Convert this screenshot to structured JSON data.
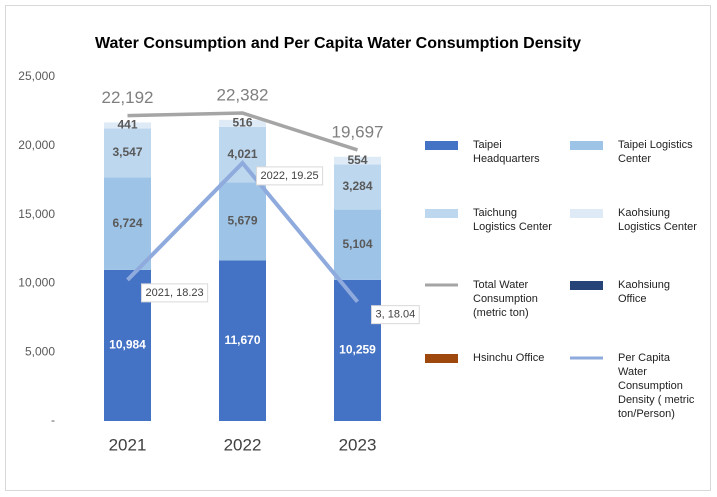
{
  "chart_data": {
    "type": "bar",
    "stacked": true,
    "title": "Water Consumption and Per Capita Water Consumption Density",
    "categories": [
      "2021",
      "2022",
      "2023"
    ],
    "ylim": [
      0,
      25000
    ],
    "yticks": [
      {
        "value": 0,
        "label": "-"
      },
      {
        "value": 5000,
        "label": "5,000"
      },
      {
        "value": 10000,
        "label": "10,000"
      },
      {
        "value": 15000,
        "label": "15,000"
      },
      {
        "value": 20000,
        "label": "20,000"
      },
      {
        "value": 25000,
        "label": "25,000"
      }
    ],
    "y2lim": [
      17,
      20
    ],
    "grid": false,
    "legend": "right",
    "series": [
      {
        "name": "Taipei Headquarters",
        "type": "bar",
        "color": "#4472c4",
        "label_color": "#ffffff",
        "values": [
          10984,
          11670,
          10259
        ],
        "value_labels": [
          "10,984",
          "11,670",
          "10,259"
        ]
      },
      {
        "name": "Taipei Logistics Center",
        "type": "bar",
        "color": "#9dc3e6",
        "label_color": "#595959",
        "values": [
          6724,
          5679,
          5104
        ],
        "value_labels": [
          "6,724",
          "5,679",
          "5,104"
        ]
      },
      {
        "name": "Taichung Logistics Center",
        "type": "bar",
        "color": "#bdd7ee",
        "label_color": "#595959",
        "values": [
          3547,
          4021,
          3284
        ],
        "value_labels": [
          "3,547",
          "4,021",
          "3,284"
        ]
      },
      {
        "name": "Kaohsiung Logistics Center",
        "type": "bar",
        "color": "#deebf7",
        "label_color": "#595959",
        "values": [
          441,
          516,
          554
        ],
        "value_labels": [
          "441",
          "516",
          "554"
        ]
      },
      {
        "name": "Total Water Consumption (metric ton)",
        "type": "line",
        "color": "#a5a5a5",
        "values": [
          22192,
          22382,
          19697
        ],
        "value_labels": [
          "22,192",
          "22,382",
          "19,697"
        ]
      },
      {
        "name": "Kaohsiung Office",
        "type": "bar",
        "color": "#264478",
        "values": [
          null,
          null,
          null
        ]
      },
      {
        "name": "Hsinchu Office",
        "type": "bar",
        "color": "#9e480e",
        "values": [
          null,
          null,
          null
        ]
      },
      {
        "name": "Per Capita Water Consumption Density ( metric ton/Person)",
        "type": "line",
        "axis": "y2",
        "color": "#8faadc",
        "values": [
          18.23,
          19.25,
          18.04
        ],
        "value_labels": [
          "2021, 18.23",
          "2022, 19.25",
          "3, 18.04"
        ]
      }
    ]
  }
}
